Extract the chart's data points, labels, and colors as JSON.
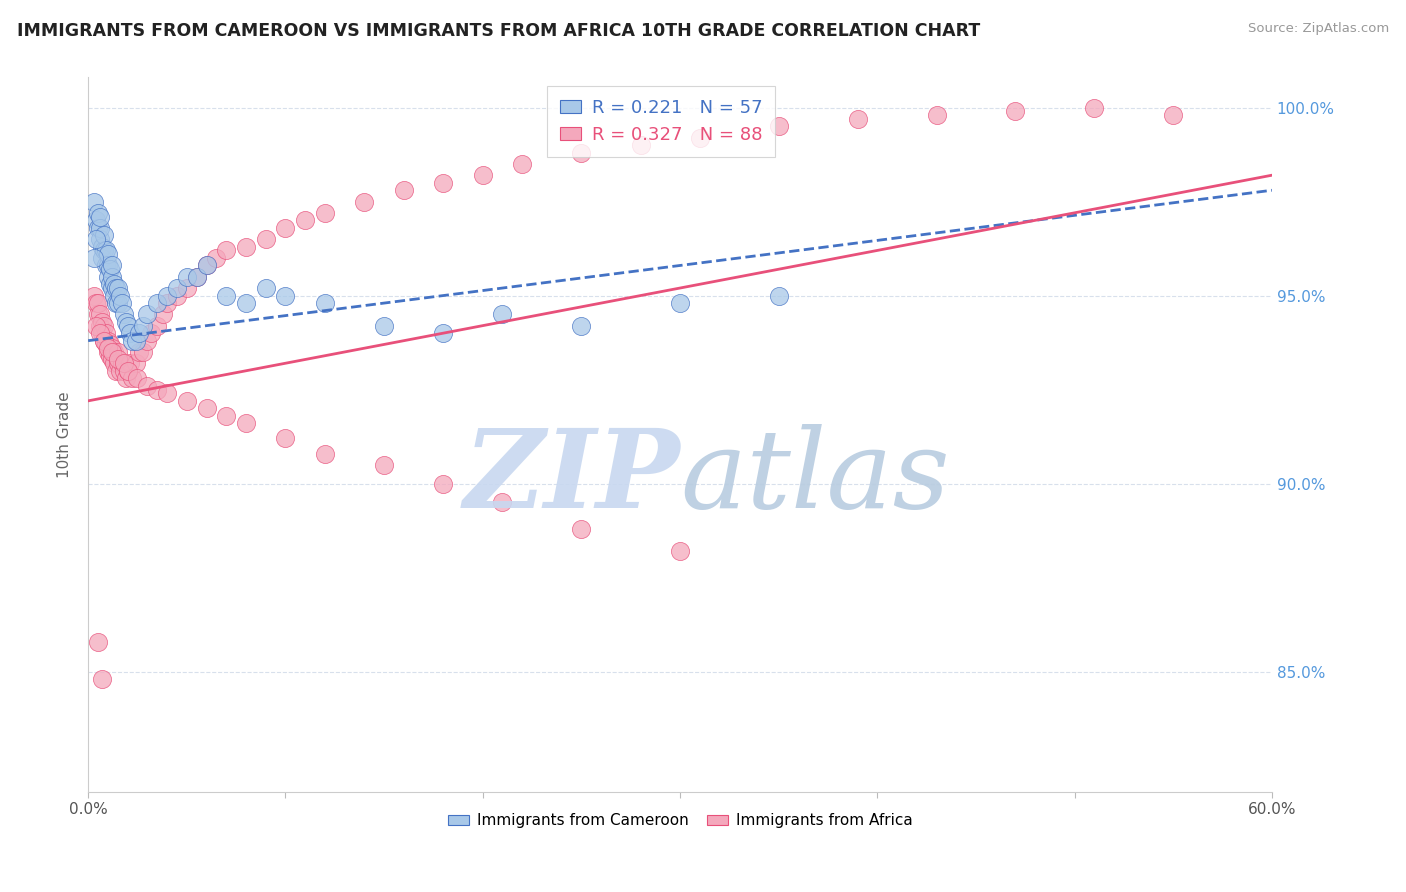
{
  "title": "IMMIGRANTS FROM CAMEROON VS IMMIGRANTS FROM AFRICA 10TH GRADE CORRELATION CHART",
  "source": "Source: ZipAtlas.com",
  "ylabel": "10th Grade",
  "legend_labels": [
    "Immigrants from Cameroon",
    "Immigrants from Africa"
  ],
  "r_cameroon": 0.221,
  "n_cameroon": 57,
  "r_africa": 0.327,
  "n_africa": 88,
  "xlim": [
    0.0,
    0.6
  ],
  "ylim": [
    0.818,
    1.008
  ],
  "yticks": [
    0.85,
    0.9,
    0.95,
    1.0
  ],
  "ytick_labels": [
    "85.0%",
    "90.0%",
    "95.0%",
    "100.0%"
  ],
  "color_cameroon": "#a8c8e8",
  "color_africa": "#f4a8bc",
  "color_trend_cameroon": "#4472c4",
  "color_trend_africa": "#e8507a",
  "background_color": "#ffffff",
  "grid_color": "#d8e0ec",
  "cameroon_x": [
    0.003,
    0.004,
    0.005,
    0.005,
    0.006,
    0.006,
    0.006,
    0.007,
    0.007,
    0.008,
    0.008,
    0.009,
    0.009,
    0.01,
    0.01,
    0.01,
    0.011,
    0.011,
    0.012,
    0.012,
    0.012,
    0.013,
    0.013,
    0.014,
    0.014,
    0.015,
    0.015,
    0.016,
    0.017,
    0.018,
    0.019,
    0.02,
    0.021,
    0.022,
    0.024,
    0.026,
    0.028,
    0.03,
    0.035,
    0.04,
    0.045,
    0.05,
    0.055,
    0.06,
    0.07,
    0.08,
    0.09,
    0.1,
    0.12,
    0.15,
    0.18,
    0.21,
    0.25,
    0.3,
    0.35,
    0.003,
    0.004
  ],
  "cameroon_y": [
    0.975,
    0.97,
    0.968,
    0.972,
    0.965,
    0.968,
    0.971,
    0.96,
    0.963,
    0.962,
    0.966,
    0.958,
    0.962,
    0.955,
    0.958,
    0.961,
    0.953,
    0.957,
    0.952,
    0.955,
    0.958,
    0.95,
    0.953,
    0.948,
    0.952,
    0.948,
    0.952,
    0.95,
    0.948,
    0.945,
    0.943,
    0.942,
    0.94,
    0.938,
    0.938,
    0.94,
    0.942,
    0.945,
    0.948,
    0.95,
    0.952,
    0.955,
    0.955,
    0.958,
    0.95,
    0.948,
    0.952,
    0.95,
    0.948,
    0.942,
    0.94,
    0.945,
    0.942,
    0.948,
    0.95,
    0.96,
    0.965
  ],
  "africa_x": [
    0.003,
    0.004,
    0.005,
    0.005,
    0.006,
    0.006,
    0.007,
    0.007,
    0.008,
    0.008,
    0.009,
    0.009,
    0.01,
    0.01,
    0.011,
    0.011,
    0.012,
    0.012,
    0.013,
    0.013,
    0.014,
    0.015,
    0.015,
    0.016,
    0.017,
    0.018,
    0.019,
    0.02,
    0.021,
    0.022,
    0.024,
    0.026,
    0.028,
    0.03,
    0.032,
    0.035,
    0.038,
    0.04,
    0.045,
    0.05,
    0.055,
    0.06,
    0.065,
    0.07,
    0.08,
    0.09,
    0.1,
    0.11,
    0.12,
    0.14,
    0.16,
    0.18,
    0.2,
    0.22,
    0.25,
    0.28,
    0.31,
    0.35,
    0.39,
    0.43,
    0.47,
    0.51,
    0.55,
    0.004,
    0.006,
    0.008,
    0.01,
    0.012,
    0.015,
    0.018,
    0.02,
    0.025,
    0.03,
    0.035,
    0.04,
    0.05,
    0.06,
    0.07,
    0.08,
    0.1,
    0.12,
    0.15,
    0.18,
    0.21,
    0.25,
    0.3,
    0.005,
    0.007
  ],
  "africa_y": [
    0.95,
    0.948,
    0.945,
    0.948,
    0.942,
    0.945,
    0.94,
    0.943,
    0.938,
    0.942,
    0.937,
    0.94,
    0.935,
    0.938,
    0.934,
    0.937,
    0.933,
    0.936,
    0.932,
    0.935,
    0.93,
    0.932,
    0.935,
    0.93,
    0.932,
    0.93,
    0.928,
    0.93,
    0.932,
    0.928,
    0.932,
    0.935,
    0.935,
    0.938,
    0.94,
    0.942,
    0.945,
    0.948,
    0.95,
    0.952,
    0.955,
    0.958,
    0.96,
    0.962,
    0.963,
    0.965,
    0.968,
    0.97,
    0.972,
    0.975,
    0.978,
    0.98,
    0.982,
    0.985,
    0.988,
    0.99,
    0.992,
    0.995,
    0.997,
    0.998,
    0.999,
    1.0,
    0.998,
    0.942,
    0.94,
    0.938,
    0.936,
    0.935,
    0.933,
    0.932,
    0.93,
    0.928,
    0.926,
    0.925,
    0.924,
    0.922,
    0.92,
    0.918,
    0.916,
    0.912,
    0.908,
    0.905,
    0.9,
    0.895,
    0.888,
    0.882,
    0.858,
    0.848
  ],
  "trend_cam_x0": 0.0,
  "trend_cam_x1": 0.6,
  "trend_cam_y0": 0.938,
  "trend_cam_y1": 0.978,
  "trend_afr_x0": 0.0,
  "trend_afr_x1": 0.6,
  "trend_afr_y0": 0.922,
  "trend_afr_y1": 0.982
}
